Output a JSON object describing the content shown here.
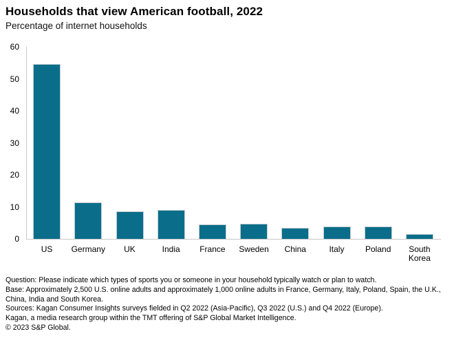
{
  "title": "Households that view American football, 2022",
  "subtitle": "Percentage of internet households",
  "chart_data": {
    "type": "bar",
    "title": "Households that view American football, 2022",
    "subtitle": "Percentage of internet households",
    "categories": [
      "US",
      "Germany",
      "UK",
      "India",
      "France",
      "Sweden",
      "China",
      "Italy",
      "Poland",
      "South Korea"
    ],
    "values": [
      54.6,
      11.3,
      8.5,
      9.0,
      4.6,
      4.8,
      3.5,
      3.8,
      3.8,
      1.5
    ],
    "xlabel": "",
    "ylabel": "",
    "ylim": [
      0,
      60
    ],
    "yticks": [
      0,
      10,
      20,
      30,
      40,
      50,
      60
    ],
    "grid": false,
    "legend": "none",
    "bar_color": "#0a6e8a",
    "bar_border_color": "#c3ccd1",
    "axis_color": "#c8c8c8"
  },
  "footnotes": {
    "question": "Question: Please indicate which types of sports you or someone in your household typically watch or plan to watch.",
    "base": "Base: Approximately 2,500 U.S. online adults and approximately 1,000 online adults in France, Germany, Italy, Poland, Spain, the U.K., China, India and South Korea.",
    "sources": "Sources: Kagan Consumer Insights surveys fielded in Q2 2022 (Asia-Pacific), Q3 2022 (U.S.) and Q4 2022 (Europe).",
    "kagan": "Kagan, a media research group within the TMT offering of S&P Global Market Intelligence.",
    "copyright": "© 2023 S&P Global."
  }
}
